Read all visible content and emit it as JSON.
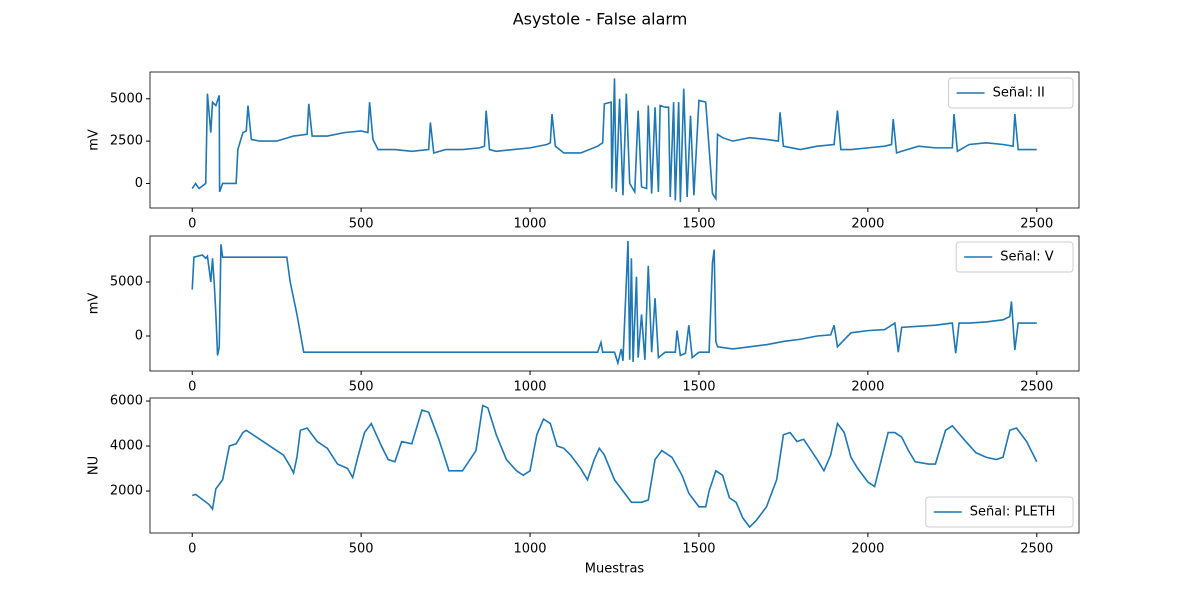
{
  "title": "Asystole - False alarm",
  "chart_data": [
    {
      "type": "line",
      "ylabel": "mV",
      "xlim": [
        -125,
        2625
      ],
      "ylim": [
        -1450,
        6580
      ],
      "xticks": [
        0,
        500,
        1000,
        1500,
        2000,
        2500
      ],
      "yticks": [
        0,
        2500,
        5000
      ],
      "legend": "upper right",
      "x": [
        0,
        10,
        20,
        40,
        45,
        55,
        60,
        70,
        80,
        81,
        90,
        130,
        135,
        150,
        160,
        165,
        175,
        200,
        250,
        300,
        340,
        345,
        355,
        400,
        450,
        500,
        520,
        525,
        535,
        550,
        600,
        650,
        700,
        705,
        715,
        750,
        800,
        850,
        865,
        870,
        880,
        900,
        950,
        1000,
        1050,
        1060,
        1065,
        1075,
        1100,
        1150,
        1200,
        1215,
        1220,
        1240,
        1242,
        1250,
        1255,
        1265,
        1275,
        1285,
        1295,
        1310,
        1320,
        1330,
        1345,
        1350,
        1360,
        1370,
        1380,
        1385,
        1400,
        1410,
        1415,
        1425,
        1430,
        1440,
        1445,
        1455,
        1465,
        1475,
        1485,
        1500,
        1520,
        1540,
        1550,
        1555,
        1570,
        1600,
        1650,
        1700,
        1735,
        1740,
        1750,
        1800,
        1850,
        1900,
        1910,
        1920,
        1950,
        2000,
        2050,
        2070,
        2075,
        2085,
        2100,
        2150,
        2200,
        2250,
        2255,
        2265,
        2300,
        2350,
        2400,
        2430,
        2435,
        2445,
        2500
      ],
      "series": [
        {
          "name": "Señal: II",
          "color": "#1f77b4",
          "values": [
            -300,
            0,
            -300,
            0,
            5300,
            3000,
            4800,
            4600,
            5200,
            -500,
            0,
            0,
            2000,
            3000,
            3100,
            4600,
            2600,
            2500,
            2500,
            2800,
            2900,
            4700,
            2800,
            2800,
            3000,
            3100,
            3000,
            4800,
            2600,
            2000,
            2000,
            1900,
            2000,
            3600,
            1800,
            2000,
            2000,
            2100,
            2200,
            4300,
            2000,
            1900,
            2000,
            2100,
            2300,
            2400,
            4100,
            2200,
            1800,
            1800,
            2200,
            2400,
            4700,
            4800,
            -300,
            6200,
            -500,
            5000,
            -700,
            5300,
            0,
            -500,
            4300,
            -200,
            -300,
            4600,
            -600,
            4500,
            -500,
            4600,
            4500,
            4500,
            -800,
            4800,
            -1000,
            4800,
            -1100,
            5600,
            -800,
            4000,
            -700,
            4900,
            4800,
            -600,
            -900,
            2900,
            2700,
            2500,
            2700,
            2600,
            2500,
            4200,
            2200,
            2000,
            2200,
            2300,
            4300,
            2000,
            2000,
            2100,
            2200,
            2300,
            3800,
            1800,
            1900,
            2200,
            2100,
            2100,
            4100,
            1900,
            2300,
            2400,
            2300,
            2200,
            4100,
            2000,
            2000
          ]
        }
      ]
    },
    {
      "type": "line",
      "ylabel": "mV",
      "xlim": [
        -125,
        2625
      ],
      "ylim": [
        -3240,
        9260
      ],
      "xticks": [
        0,
        500,
        1000,
        1500,
        2000,
        2500
      ],
      "yticks": [
        0,
        5000
      ],
      "legend": "upper right",
      "x": [
        0,
        5,
        30,
        40,
        45,
        55,
        60,
        65,
        70,
        75,
        80,
        85,
        90,
        150,
        200,
        280,
        290,
        310,
        330,
        400,
        800,
        1200,
        1210,
        1215,
        1250,
        1260,
        1270,
        1275,
        1285,
        1290,
        1295,
        1300,
        1305,
        1315,
        1320,
        1330,
        1340,
        1350,
        1360,
        1370,
        1380,
        1400,
        1430,
        1435,
        1445,
        1460,
        1470,
        1480,
        1500,
        1530,
        1540,
        1545,
        1550,
        1555,
        1600,
        1650,
        1700,
        1750,
        1800,
        1850,
        1890,
        1900,
        1910,
        1950,
        2000,
        2050,
        2080,
        2090,
        2100,
        2200,
        2250,
        2260,
        2270,
        2300,
        2350,
        2400,
        2420,
        2425,
        2435,
        2445,
        2500
      ],
      "series": [
        {
          "name": "Señal: V",
          "color": "#1f77b4",
          "values": [
            4300,
            7300,
            7500,
            7200,
            7400,
            5000,
            7200,
            5000,
            2000,
            -1800,
            -1000,
            8500,
            7300,
            7300,
            7300,
            7300,
            5000,
            2000,
            -1500,
            -1500,
            -1500,
            -1500,
            -600,
            -1500,
            -1500,
            -2500,
            -1200,
            -2300,
            5000,
            8800,
            -2200,
            7200,
            -2400,
            5500,
            -2000,
            2000,
            -2200,
            6500,
            -1500,
            3500,
            -2000,
            -1500,
            -1500,
            500,
            -1800,
            -1600,
            1000,
            -2000,
            -1500,
            -1500,
            6800,
            8000,
            -500,
            -1000,
            -1200,
            -1000,
            -800,
            -500,
            -300,
            0,
            100,
            1000,
            -1000,
            300,
            500,
            600,
            1200,
            -1500,
            800,
            1000,
            1200,
            -1600,
            1200,
            1200,
            1300,
            1500,
            1800,
            3200,
            -1300,
            1200,
            1200
          ]
        }
      ]
    },
    {
      "type": "line",
      "ylabel": "NU",
      "xlabel": "Muestras",
      "xlim": [
        -125,
        2625
      ],
      "ylim": [
        135,
        6135
      ],
      "xticks": [
        0,
        500,
        1000,
        1500,
        2000,
        2500
      ],
      "yticks": [
        2000,
        4000,
        6000
      ],
      "legend": "lower right",
      "x": [
        0,
        10,
        50,
        60,
        70,
        90,
        110,
        130,
        150,
        160,
        200,
        250,
        270,
        290,
        300,
        310,
        320,
        340,
        370,
        400,
        430,
        460,
        475,
        490,
        510,
        530,
        560,
        580,
        600,
        620,
        650,
        680,
        700,
        730,
        760,
        800,
        840,
        860,
        875,
        900,
        930,
        960,
        980,
        1000,
        1020,
        1040,
        1060,
        1080,
        1100,
        1120,
        1150,
        1170,
        1190,
        1205,
        1220,
        1250,
        1280,
        1300,
        1330,
        1350,
        1370,
        1390,
        1420,
        1450,
        1470,
        1500,
        1520,
        1530,
        1550,
        1570,
        1590,
        1610,
        1630,
        1650,
        1670,
        1700,
        1730,
        1750,
        1770,
        1790,
        1810,
        1850,
        1870,
        1890,
        1910,
        1930,
        1950,
        1970,
        2000,
        2020,
        2040,
        2060,
        2080,
        2100,
        2120,
        2140,
        2180,
        2200,
        2230,
        2250,
        2290,
        2320,
        2350,
        2380,
        2400,
        2420,
        2440,
        2470,
        2500
      ],
      "series": [
        {
          "name": "Señal: PLETH",
          "color": "#1f77b4",
          "values": [
            1800,
            1850,
            1400,
            1200,
            2100,
            2500,
            4000,
            4100,
            4600,
            4700,
            4300,
            3800,
            3600,
            3100,
            2800,
            3500,
            4700,
            4800,
            4200,
            3900,
            3200,
            3000,
            2600,
            3500,
            4600,
            5000,
            4000,
            3400,
            3300,
            4200,
            4100,
            5600,
            5500,
            4300,
            2900,
            2900,
            3800,
            5800,
            5700,
            4500,
            3400,
            2900,
            2700,
            2900,
            4500,
            5200,
            5000,
            4000,
            3900,
            3600,
            3000,
            2500,
            3400,
            3900,
            3600,
            2500,
            1900,
            1500,
            1500,
            1600,
            3400,
            3800,
            3500,
            2700,
            1900,
            1300,
            1300,
            2000,
            2900,
            2700,
            1700,
            1500,
            800,
            400,
            700,
            1300,
            2500,
            4500,
            4600,
            4200,
            4300,
            3400,
            2900,
            3600,
            5000,
            4600,
            3500,
            3000,
            2400,
            2200,
            3400,
            4600,
            4600,
            4400,
            3800,
            3300,
            3200,
            3200,
            4700,
            4900,
            4200,
            3700,
            3500,
            3400,
            3500,
            4700,
            4800,
            4200,
            3300
          ]
        }
      ]
    }
  ]
}
